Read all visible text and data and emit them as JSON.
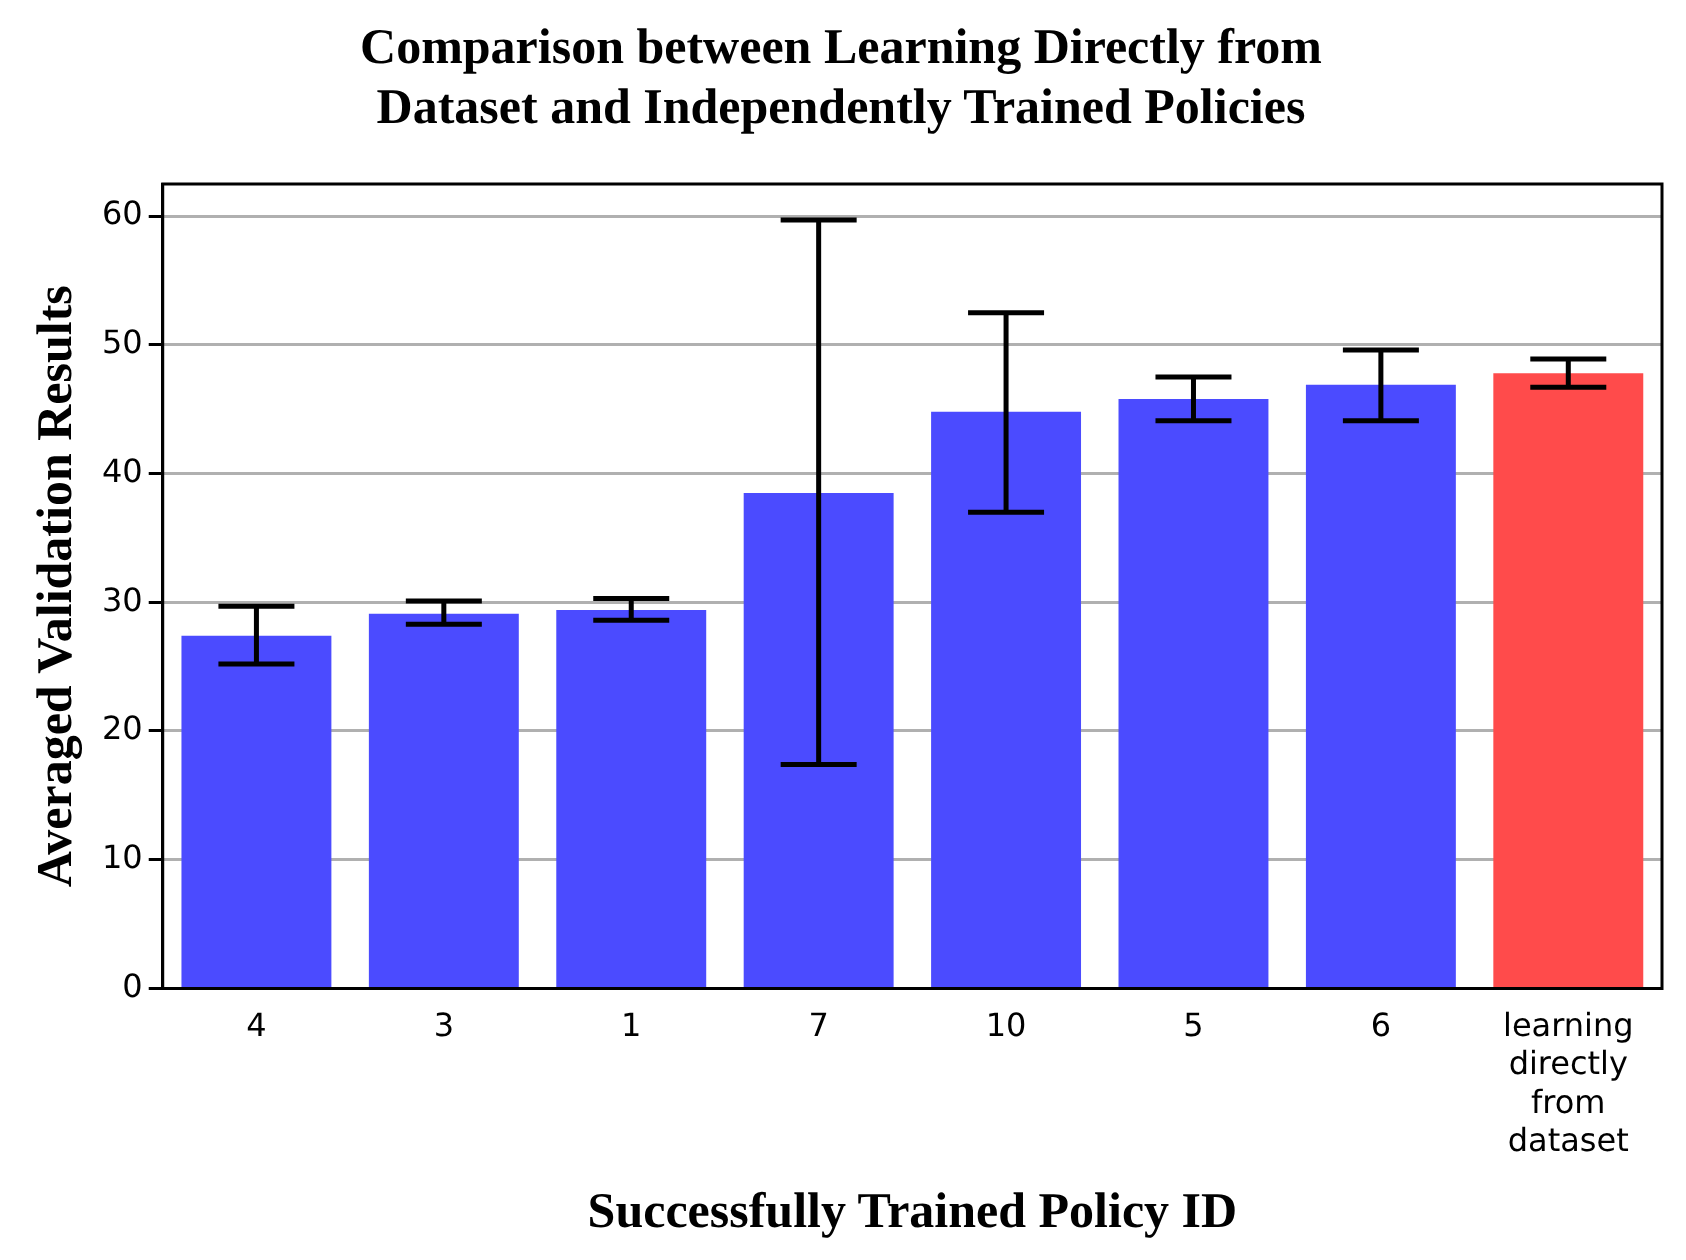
{
  "chart_data": {
    "type": "bar",
    "title": "Comparison between Learning Directly from\nDataset and Independently Trained Policies",
    "xlabel": "Successfully Trained Policy ID",
    "ylabel": "Averaged Validation Results",
    "categories": [
      "4",
      "3",
      "1",
      "7",
      "10",
      "5",
      "6",
      "learning directly from dataset"
    ],
    "values": [
      27.4,
      29.1,
      29.4,
      38.5,
      44.8,
      45.8,
      46.9,
      47.8
    ],
    "colors": [
      "#4b4bff",
      "#4b4bff",
      "#4b4bff",
      "#4b4bff",
      "#4b4bff",
      "#4b4bff",
      "#4b4bff",
      "#ff4b4b"
    ],
    "errors": [
      [
        25.2,
        29.7
      ],
      [
        28.3,
        30.1
      ],
      [
        28.6,
        30.3
      ],
      [
        17.4,
        59.7
      ],
      [
        37.0,
        52.5
      ],
      [
        44.1,
        47.5
      ],
      [
        44.1,
        49.6
      ],
      [
        46.7,
        48.9
      ]
    ],
    "ylim": [
      0,
      62.5
    ],
    "yticks": [
      0,
      10,
      20,
      30,
      40,
      50,
      60
    ],
    "grid": "y"
  }
}
